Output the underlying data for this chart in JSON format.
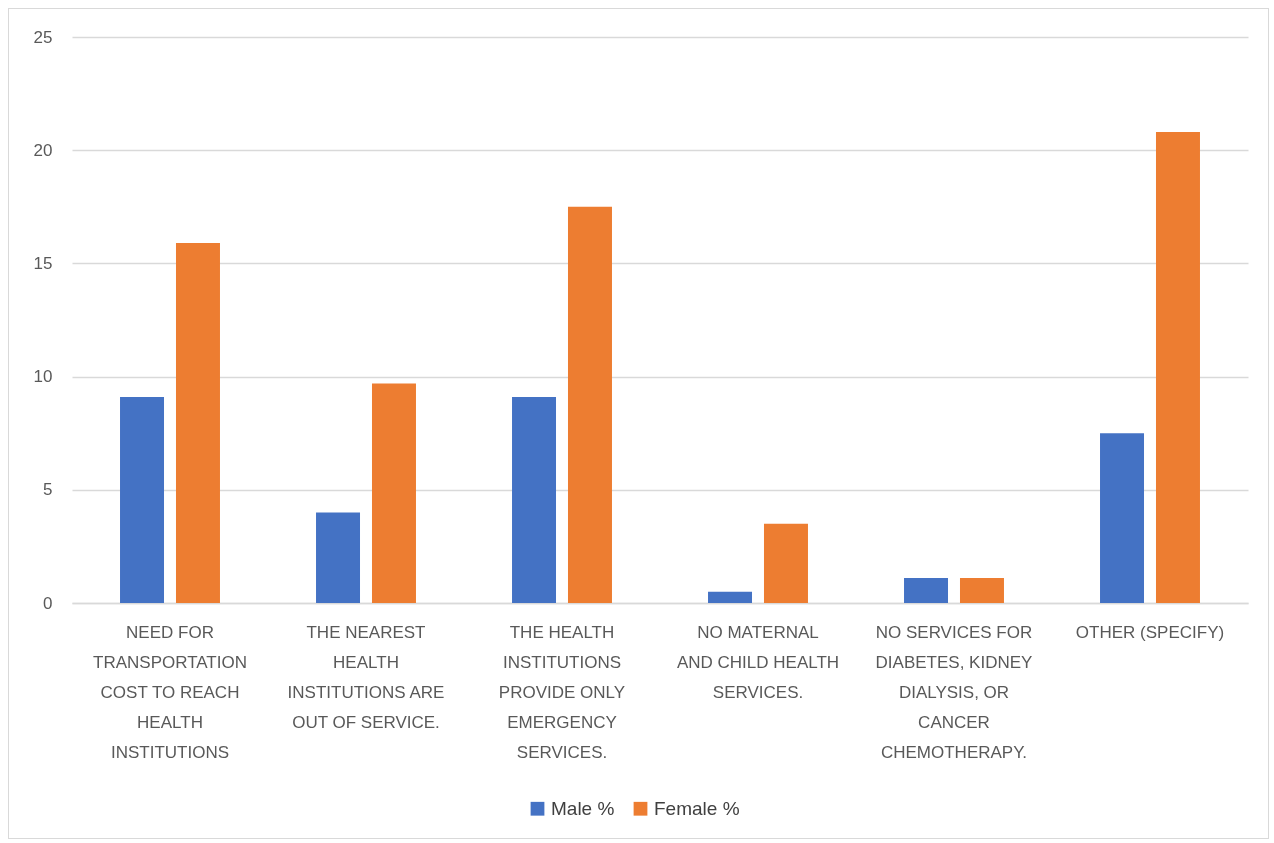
{
  "chart_data": {
    "type": "bar",
    "categories": [
      "NEED FOR\nTRANSPORTATION\nCOST TO REACH\nHEALTH\nINSTITUTIONS",
      "THE NEAREST\nHEALTH\nINSTITUTIONS ARE\nOUT OF SERVICE.",
      "THE HEALTH\nINSTITUTIONS\nPROVIDE ONLY\nEMERGENCY\nSERVICES.",
      "NO MATERNAL\nAND CHILD HEALTH\nSERVICES.",
      "NO SERVICES FOR\nDIABETES, KIDNEY\nDIALYSIS, OR\nCANCER\nCHEMOTHERAPY.",
      "OTHER (SPECIFY)"
    ],
    "series": [
      {
        "name": "Male %",
        "color": "#4472c4",
        "values": [
          9.1,
          4.0,
          9.1,
          0.5,
          1.1,
          7.5
        ]
      },
      {
        "name": "Female %",
        "color": "#ed7d31",
        "values": [
          15.9,
          9.7,
          17.5,
          3.5,
          1.1,
          20.8
        ]
      }
    ],
    "ylim": [
      0,
      25
    ],
    "yticks": [
      0,
      5,
      10,
      15,
      20,
      25
    ],
    "grid": "y",
    "legend": "bottom"
  }
}
